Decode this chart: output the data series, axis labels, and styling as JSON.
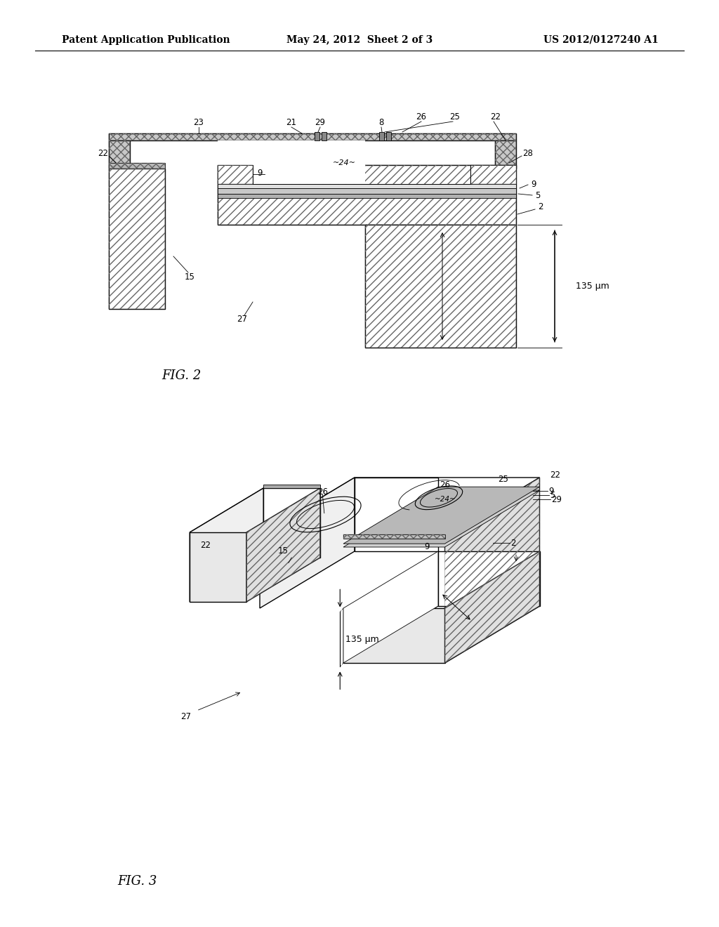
{
  "header_left": "Patent Application Publication",
  "header_mid": "May 24, 2012  Sheet 2 of 3",
  "header_right": "US 2012/0127240 A1",
  "fig2_label": "FIG. 2",
  "fig3_label": "FIG. 3",
  "dimension_label": "135 μm",
  "bg_color": "#ffffff",
  "line_color": "#000000"
}
